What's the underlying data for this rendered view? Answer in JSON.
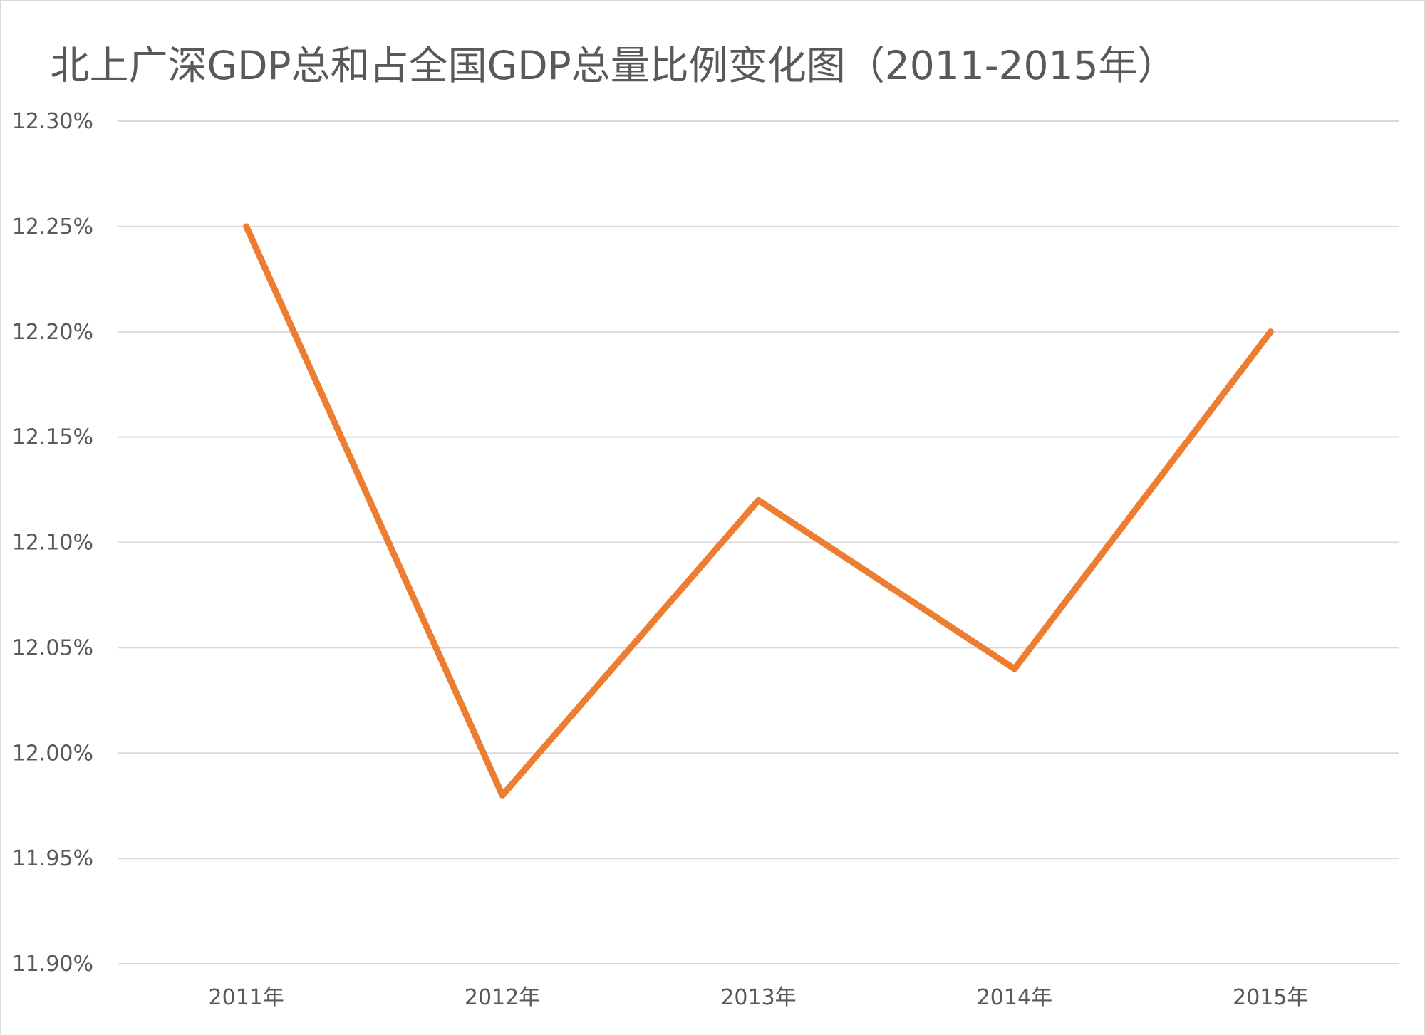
{
  "chart_data": {
    "type": "line",
    "title": "北上广深GDP总和占全国GDP总量比例变化图（2011-2015年）",
    "xlabel": "",
    "ylabel": "",
    "categories": [
      "2011年",
      "2012年",
      "2013年",
      "2014年",
      "2015年"
    ],
    "series": [
      {
        "values": [
          12.25,
          11.98,
          12.12,
          12.04,
          12.2
        ],
        "color": "#ed7d31"
      }
    ],
    "ylim": [
      11.9,
      12.3
    ],
    "yticks": [
      11.9,
      11.95,
      12.0,
      12.05,
      12.1,
      12.15,
      12.2,
      12.25,
      12.3
    ],
    "ytick_labels": [
      "11.90%",
      "11.95%",
      "12.00%",
      "12.05%",
      "12.10%",
      "12.15%",
      "12.20%",
      "12.25%",
      "12.30%"
    ],
    "grid": true,
    "legend": "none",
    "gridline_color": "#d9d9d9",
    "text_color": "#595959"
  }
}
